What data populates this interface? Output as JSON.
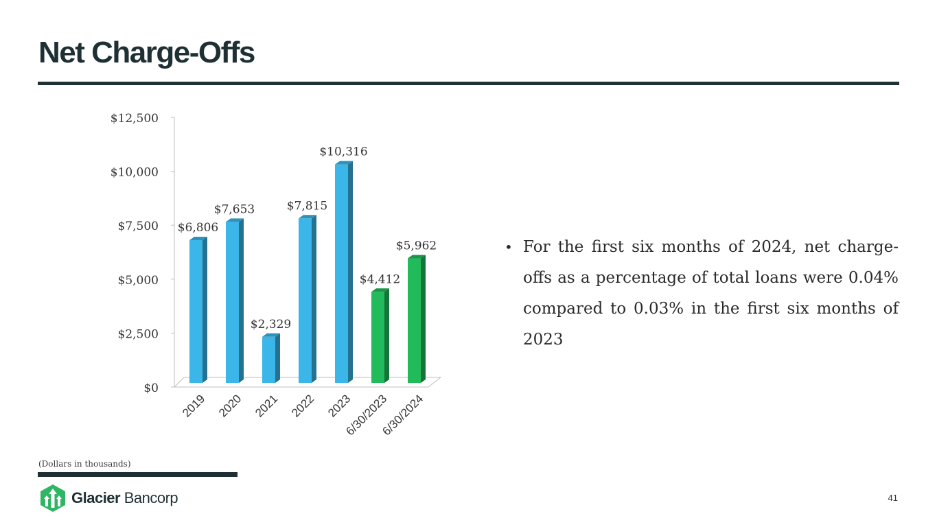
{
  "slide": {
    "title": "Net Charge-Offs",
    "bullet": "For the first six months of 2024, net charge-offs as a percentage of total loans were 0.04% compared to 0.03% in the first six months of 2023",
    "footnote": "(Dollars in thousands)",
    "page_number": "41"
  },
  "logo": {
    "name_bold": "Glacier",
    "name_light": " Bancorp",
    "icon": "glacier-arrows-icon"
  },
  "colors": {
    "title": "#1f3034",
    "bar_blue": "#3bb6e9",
    "bar_green": "#22bb5b",
    "logo_green": "#2fb563"
  },
  "chart_data": {
    "type": "bar",
    "categories": [
      "2019",
      "2020",
      "2021",
      "2022",
      "2023",
      "6/30/2023",
      "6/30/2024"
    ],
    "values": [
      6806,
      7653,
      2329,
      7815,
      10316,
      4412,
      5962
    ],
    "value_labels": [
      "$6,806",
      "$7,653",
      "$2,329",
      "$7,815",
      "$10,316",
      "$4,412",
      "$5,962"
    ],
    "bar_colors": [
      "#3bb6e9",
      "#3bb6e9",
      "#3bb6e9",
      "#3bb6e9",
      "#3bb6e9",
      "#22bb5b",
      "#22bb5b"
    ],
    "y_ticks": [
      0,
      2500,
      5000,
      7500,
      10000,
      12500
    ],
    "y_tick_labels": [
      "$0",
      "$2,500",
      "$5,000",
      "$7,500",
      "$10,000",
      "$12,500"
    ],
    "ylim": [
      0,
      12500
    ],
    "title": "",
    "xlabel": "",
    "ylabel": "",
    "grid": false,
    "style": "3d"
  }
}
